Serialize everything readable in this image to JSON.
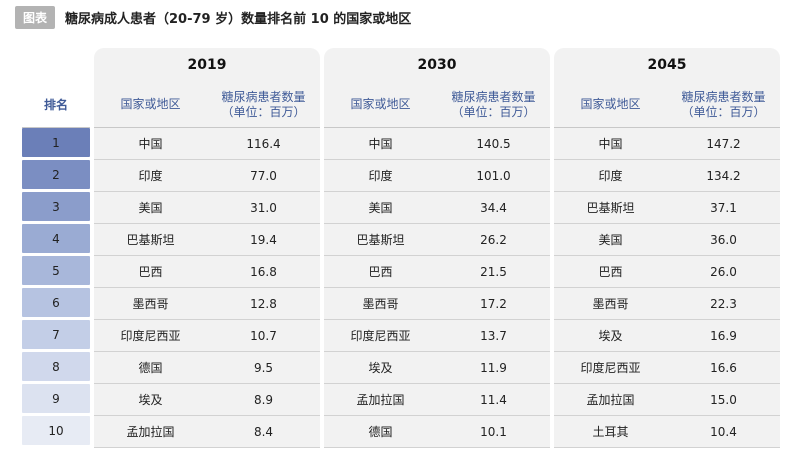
{
  "header": {
    "badge": "图表",
    "title": "糖尿病成人患者（20-79 岁）数量排名前 10 的国家或地区"
  },
  "columns": {
    "rank": "排名",
    "country": "国家或地区",
    "patients": "糖尿病患者数量\n（单位：百万）"
  },
  "colors": {
    "rank_shades": [
      "#6b7fb8",
      "#7b8ec2",
      "#8b9dcb",
      "#9aabd3",
      "#a8b7da",
      "#b6c3e1",
      "#c3cee7",
      "#d0d8ec",
      "#dce2f0",
      "#e7ebf4"
    ]
  },
  "chart_data": {
    "type": "table",
    "ranks": [
      "1",
      "2",
      "3",
      "4",
      "5",
      "6",
      "7",
      "8",
      "9",
      "10"
    ],
    "years": [
      {
        "year": "2019",
        "rows": [
          {
            "country": "中国",
            "value": "116.4"
          },
          {
            "country": "印度",
            "value": "77.0"
          },
          {
            "country": "美国",
            "value": "31.0"
          },
          {
            "country": "巴基斯坦",
            "value": "19.4"
          },
          {
            "country": "巴西",
            "value": "16.8"
          },
          {
            "country": "墨西哥",
            "value": "12.8"
          },
          {
            "country": "印度尼西亚",
            "value": "10.7"
          },
          {
            "country": "德国",
            "value": "9.5"
          },
          {
            "country": "埃及",
            "value": "8.9"
          },
          {
            "country": "孟加拉国",
            "value": "8.4"
          }
        ]
      },
      {
        "year": "2030",
        "rows": [
          {
            "country": "中国",
            "value": "140.5"
          },
          {
            "country": "印度",
            "value": "101.0"
          },
          {
            "country": "美国",
            "value": "34.4"
          },
          {
            "country": "巴基斯坦",
            "value": "26.2"
          },
          {
            "country": "巴西",
            "value": "21.5"
          },
          {
            "country": "墨西哥",
            "value": "17.2"
          },
          {
            "country": "印度尼西亚",
            "value": "13.7"
          },
          {
            "country": "埃及",
            "value": "11.9"
          },
          {
            "country": "孟加拉国",
            "value": "11.4"
          },
          {
            "country": "德国",
            "value": "10.1"
          }
        ]
      },
      {
        "year": "2045",
        "rows": [
          {
            "country": "中国",
            "value": "147.2"
          },
          {
            "country": "印度",
            "value": "134.2"
          },
          {
            "country": "巴基斯坦",
            "value": "37.1"
          },
          {
            "country": "美国",
            "value": "36.0"
          },
          {
            "country": "巴西",
            "value": "26.0"
          },
          {
            "country": "墨西哥",
            "value": "22.3"
          },
          {
            "country": "埃及",
            "value": "16.9"
          },
          {
            "country": "印度尼西亚",
            "value": "16.6"
          },
          {
            "country": "孟加拉国",
            "value": "15.0"
          },
          {
            "country": "土耳其",
            "value": "10.4"
          }
        ]
      }
    ]
  }
}
